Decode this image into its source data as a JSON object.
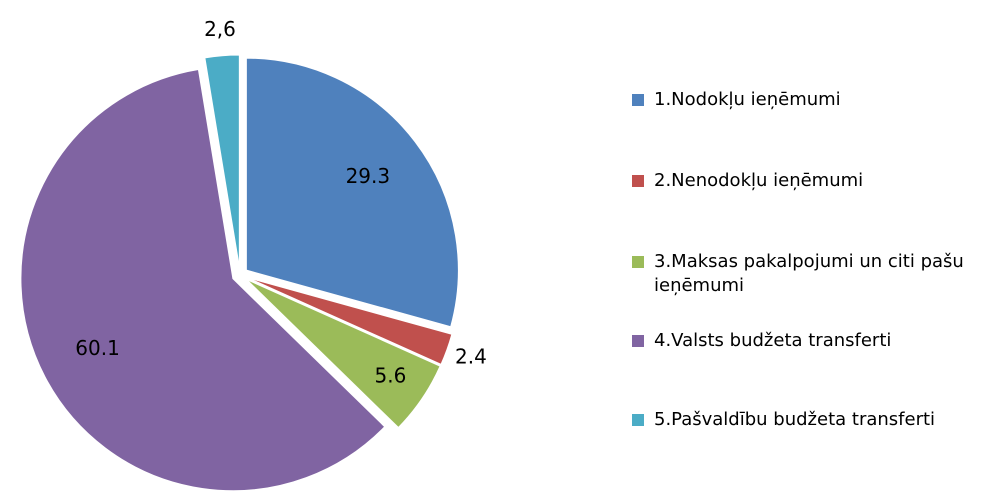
{
  "chart_data": {
    "type": "pie",
    "categories": [
      "1.Nodokļu ieņēmumi",
      "2.Nenodokļu ieņēmumi",
      "3.Maksas pakalpojumi un citi pašu ieņēmumi",
      "4.Valsts budžeta transferti",
      "5.Pašvaldību budžeta transferti"
    ],
    "values": [
      29.3,
      2.4,
      5.6,
      60.1,
      2.6
    ],
    "value_labels": [
      "29.3",
      "2.4",
      "5.6",
      "60.1",
      "2,6"
    ],
    "colors": [
      "#4f81bd",
      "#c0504d",
      "#9bbb59",
      "#8064a2",
      "#4bacc6"
    ],
    "legend": "right"
  }
}
